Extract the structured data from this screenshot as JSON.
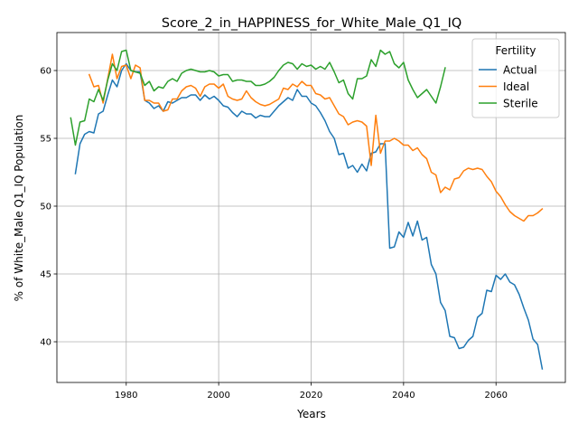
{
  "chart_data": {
    "type": "line",
    "title": "Score_2_in_HAPPINESS_for_White_Male_Q1_IQ",
    "xlabel": "Years",
    "ylabel": "% of White_Male Q1_IQ Population",
    "xlim": [
      1965,
      2075
    ],
    "ylim": [
      37,
      62.8
    ],
    "xticks": [
      1980,
      2000,
      2020,
      2040,
      2060
    ],
    "yticks": [
      40,
      45,
      50,
      55,
      60
    ],
    "grid": true,
    "legend": {
      "title": "Fertility",
      "position": "top-right"
    },
    "series": [
      {
        "name": "Actual",
        "color": "#1f77b4",
        "x": [
          1969,
          1970,
          1971,
          1972,
          1973,
          1974,
          1975,
          1976,
          1977,
          1978,
          1979,
          1980,
          1981,
          1982,
          1983,
          1984,
          1985,
          1986,
          1987,
          1988,
          1989,
          1990,
          1991,
          1992,
          1993,
          1994,
          1995,
          1996,
          1997,
          1998,
          1999,
          2000,
          2001,
          2002,
          2003,
          2004,
          2005,
          2006,
          2007,
          2008,
          2009,
          2010,
          2011,
          2012,
          2013,
          2014,
          2015,
          2016,
          2017,
          2018,
          2019,
          2020,
          2021,
          2022,
          2023,
          2024,
          2025,
          2026,
          2027,
          2028,
          2029,
          2030,
          2031,
          2032,
          2033,
          2034,
          2035,
          2036,
          2037,
          2038,
          2039,
          2040,
          2041,
          2042,
          2043,
          2044,
          2045,
          2046,
          2047,
          2048,
          2049,
          2050,
          2051,
          2052,
          2053,
          2054,
          2055,
          2056,
          2057,
          2058,
          2059,
          2060,
          2061,
          2062,
          2063,
          2064,
          2065,
          2066,
          2067,
          2068,
          2069,
          2070
        ],
        "values": [
          52.4,
          54.6,
          55.3,
          55.5,
          55.4,
          56.8,
          57.0,
          58.2,
          59.3,
          58.8,
          60.0,
          60.5,
          60.0,
          59.9,
          59.9,
          57.8,
          57.6,
          57.2,
          57.4,
          57.0,
          57.7,
          57.6,
          57.8,
          58.0,
          58.0,
          58.2,
          58.2,
          57.8,
          58.2,
          57.9,
          58.1,
          57.8,
          57.4,
          57.3,
          56.9,
          56.6,
          57.0,
          56.8,
          56.8,
          56.5,
          56.7,
          56.6,
          56.6,
          57.0,
          57.4,
          57.7,
          58.0,
          57.8,
          58.6,
          58.1,
          58.1,
          57.6,
          57.4,
          56.9,
          56.3,
          55.5,
          55.0,
          53.8,
          53.9,
          52.8,
          53.0,
          52.5,
          53.1,
          52.6,
          53.9,
          54.0,
          54.6,
          54.6,
          46.9,
          47.0,
          48.1,
          47.7,
          48.8,
          47.8,
          48.9,
          47.5,
          47.7,
          45.7,
          45.0,
          42.9,
          42.3,
          40.4,
          40.3,
          39.5,
          39.6,
          40.1,
          40.4,
          41.8,
          42.1,
          43.8,
          43.7,
          44.9,
          44.6,
          45.0,
          44.4,
          44.2,
          43.5,
          42.5,
          41.6,
          40.2,
          39.8,
          38.0
        ]
      },
      {
        "name": "Ideal",
        "color": "#ff7f0e",
        "x": [
          1972,
          1973,
          1974,
          1975,
          1976,
          1977,
          1978,
          1979,
          1980,
          1981,
          1982,
          1983,
          1984,
          1985,
          1986,
          1987,
          1988,
          1989,
          1990,
          1991,
          1992,
          1993,
          1994,
          1995,
          1996,
          1997,
          1998,
          1999,
          2000,
          2001,
          2002,
          2003,
          2004,
          2005,
          2006,
          2007,
          2008,
          2009,
          2010,
          2011,
          2012,
          2013,
          2014,
          2015,
          2016,
          2017,
          2018,
          2019,
          2020,
          2021,
          2022,
          2023,
          2024,
          2025,
          2026,
          2027,
          2028,
          2029,
          2030,
          2031,
          2032,
          2033,
          2034,
          2035,
          2036,
          2037,
          2038,
          2039,
          2040,
          2041,
          2042,
          2043,
          2044,
          2045,
          2046,
          2047,
          2048,
          2049,
          2050,
          2051,
          2052,
          2053,
          2054,
          2055,
          2056,
          2057,
          2058,
          2059,
          2060,
          2061,
          2062,
          2063,
          2064,
          2065,
          2066,
          2067,
          2068,
          2069,
          2070
        ],
        "values": [
          59.7,
          58.8,
          58.9,
          57.6,
          59.4,
          61.2,
          59.4,
          60.3,
          60.4,
          59.4,
          60.4,
          60.2,
          57.8,
          57.8,
          57.6,
          57.6,
          57.0,
          57.1,
          57.9,
          57.9,
          58.5,
          58.8,
          58.9,
          58.7,
          58.1,
          58.8,
          59.0,
          59.0,
          58.7,
          59.0,
          58.1,
          57.9,
          57.8,
          57.9,
          58.5,
          58.0,
          57.7,
          57.5,
          57.4,
          57.5,
          57.7,
          57.9,
          58.7,
          58.6,
          59.0,
          58.8,
          59.2,
          58.9,
          58.9,
          58.3,
          58.2,
          57.9,
          58.0,
          57.4,
          56.8,
          56.6,
          56.0,
          56.2,
          56.3,
          56.2,
          55.9,
          53.0,
          56.7,
          53.9,
          54.8,
          54.8,
          55.0,
          54.8,
          54.5,
          54.5,
          54.1,
          54.3,
          53.8,
          53.5,
          52.5,
          52.3,
          51.0,
          51.4,
          51.2,
          52.0,
          52.1,
          52.6,
          52.8,
          52.7,
          52.8,
          52.7,
          52.2,
          51.8,
          51.1,
          50.7,
          50.1,
          49.6,
          49.3,
          49.1,
          48.9,
          49.3,
          49.3,
          49.5,
          49.8
        ]
      },
      {
        "name": "Sterile",
        "color": "#2ca02c",
        "x": [
          1968,
          1969,
          1970,
          1971,
          1972,
          1973,
          1974,
          1975,
          1976,
          1977,
          1978,
          1979,
          1980,
          1981,
          1982,
          1983,
          1984,
          1985,
          1986,
          1987,
          1988,
          1989,
          1990,
          1991,
          1992,
          1993,
          1994,
          1995,
          1996,
          1997,
          1998,
          1999,
          2000,
          2001,
          2002,
          2003,
          2004,
          2005,
          2006,
          2007,
          2008,
          2009,
          2010,
          2011,
          2012,
          2013,
          2014,
          2015,
          2016,
          2017,
          2018,
          2019,
          2020,
          2021,
          2022,
          2023,
          2024,
          2025,
          2026,
          2027,
          2028,
          2029,
          2030,
          2031,
          2032,
          2033,
          2034,
          2035,
          2036,
          2037,
          2038,
          2039,
          2040,
          2041,
          2042,
          2043,
          2044,
          2045,
          2046,
          2047,
          2048,
          2049
        ],
        "values": [
          56.5,
          54.5,
          56.2,
          56.3,
          57.9,
          57.7,
          58.6,
          57.8,
          59.3,
          60.5,
          60.0,
          61.4,
          61.5,
          60.0,
          59.9,
          59.8,
          58.9,
          59.2,
          58.5,
          58.8,
          58.7,
          59.2,
          59.4,
          59.2,
          59.8,
          60.0,
          60.1,
          60.0,
          59.9,
          59.9,
          60.0,
          59.9,
          59.6,
          59.7,
          59.7,
          59.2,
          59.3,
          59.3,
          59.2,
          59.2,
          58.9,
          58.9,
          59.0,
          59.2,
          59.5,
          60.0,
          60.4,
          60.6,
          60.5,
          60.1,
          60.5,
          60.3,
          60.4,
          60.1,
          60.3,
          60.1,
          60.6,
          59.9,
          59.1,
          59.3,
          58.3,
          57.9,
          59.4,
          59.4,
          59.6,
          60.8,
          60.3,
          61.5,
          61.2,
          61.4,
          60.5,
          60.2,
          60.6,
          59.3,
          58.6,
          58.0,
          58.3,
          58.6,
          58.1,
          57.6,
          58.8,
          60.2
        ]
      }
    ]
  }
}
